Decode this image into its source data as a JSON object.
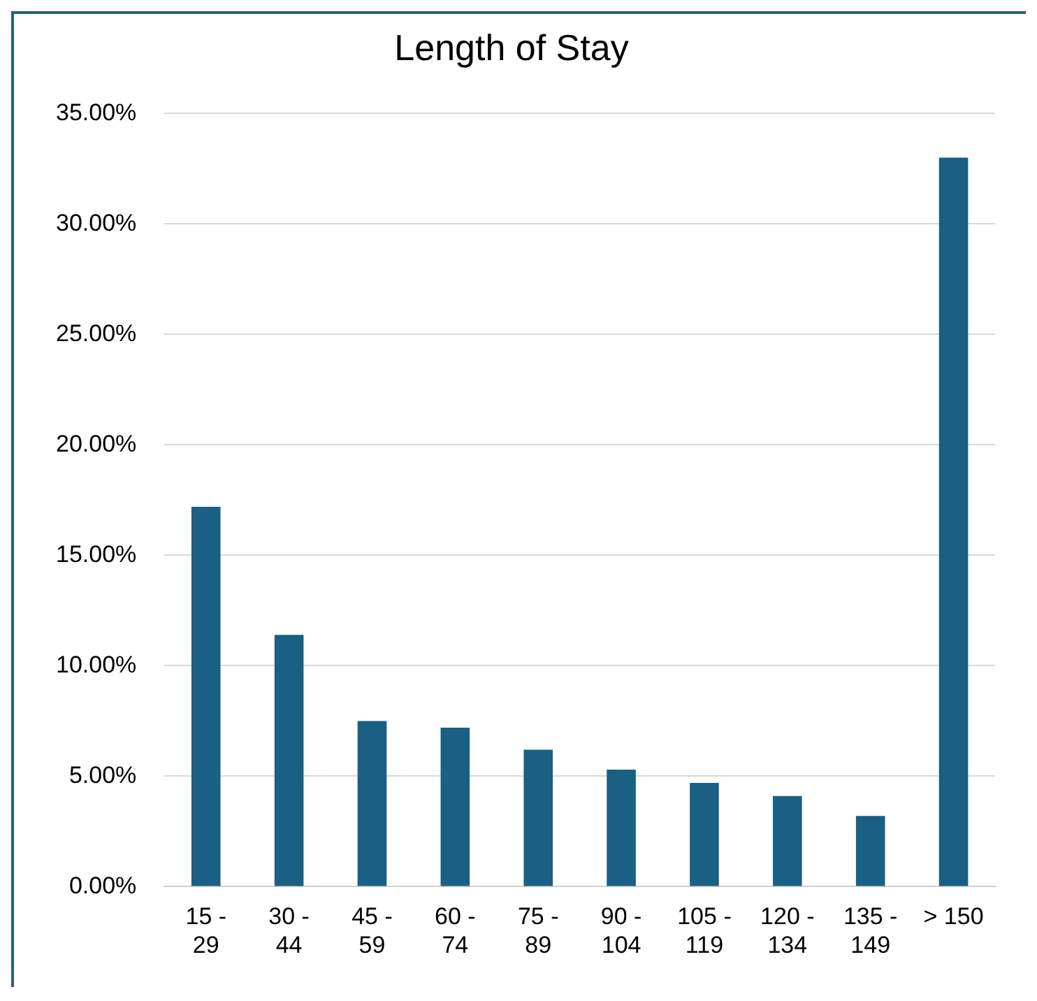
{
  "chart_data": {
    "type": "bar",
    "title": "Length of Stay",
    "categories": [
      "15 - 29",
      "30 - 44",
      "45 - 59",
      "60 - 74",
      "75 - 89",
      "90 - 104",
      "105 - 119",
      "120 - 134",
      "135 - 149",
      "> 150"
    ],
    "values": [
      17.2,
      11.4,
      7.5,
      7.2,
      6.2,
      5.3,
      4.7,
      4.1,
      3.2,
      33.0
    ],
    "color": "#1a5f84",
    "ylim": [
      0,
      35
    ],
    "yticks": [
      {
        "value": 0,
        "label": "0.00%"
      },
      {
        "value": 5,
        "label": "5.00%"
      },
      {
        "value": 10,
        "label": "10.00%"
      },
      {
        "value": 15,
        "label": "15.00%"
      },
      {
        "value": 20,
        "label": "20.00%"
      },
      {
        "value": 25,
        "label": "25.00%"
      },
      {
        "value": 30,
        "label": "30.00%"
      },
      {
        "value": 35,
        "label": "35.00%"
      }
    ],
    "grid": "y",
    "legend": false
  }
}
